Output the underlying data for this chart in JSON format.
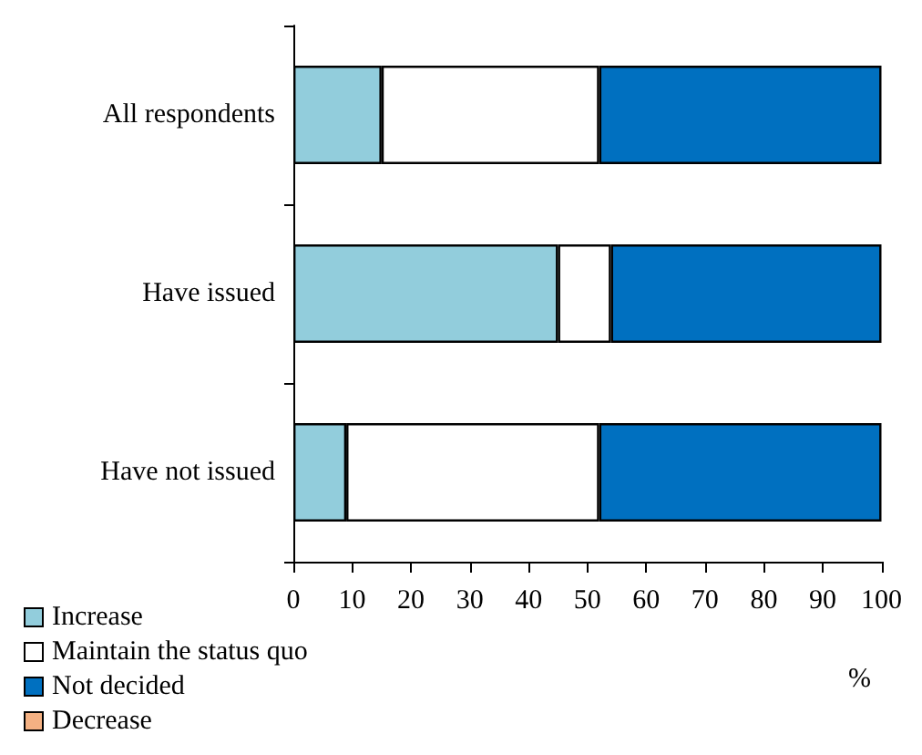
{
  "chart_data": {
    "type": "bar",
    "orientation": "horizontal",
    "stacked": true,
    "categories": [
      "All respondents",
      "Have issued",
      "Have not issued"
    ],
    "series": [
      {
        "name": "Increase",
        "color": "#92cddc",
        "values": [
          15,
          45,
          9
        ]
      },
      {
        "name": "Maintain the status quo",
        "color": "#ffffff",
        "values": [
          37,
          9,
          43
        ]
      },
      {
        "name": "Not decided",
        "color": "#0070c0",
        "values": [
          48,
          46,
          48
        ]
      },
      {
        "name": "Decrease",
        "color": "#f4b183",
        "values": [
          0,
          0,
          0
        ]
      }
    ],
    "xlim": [
      0,
      100
    ],
    "xticks": [
      0,
      10,
      20,
      30,
      40,
      50,
      60,
      70,
      80,
      90,
      100
    ],
    "xlabel": "%",
    "legend": "bottom left",
    "grid": false
  }
}
